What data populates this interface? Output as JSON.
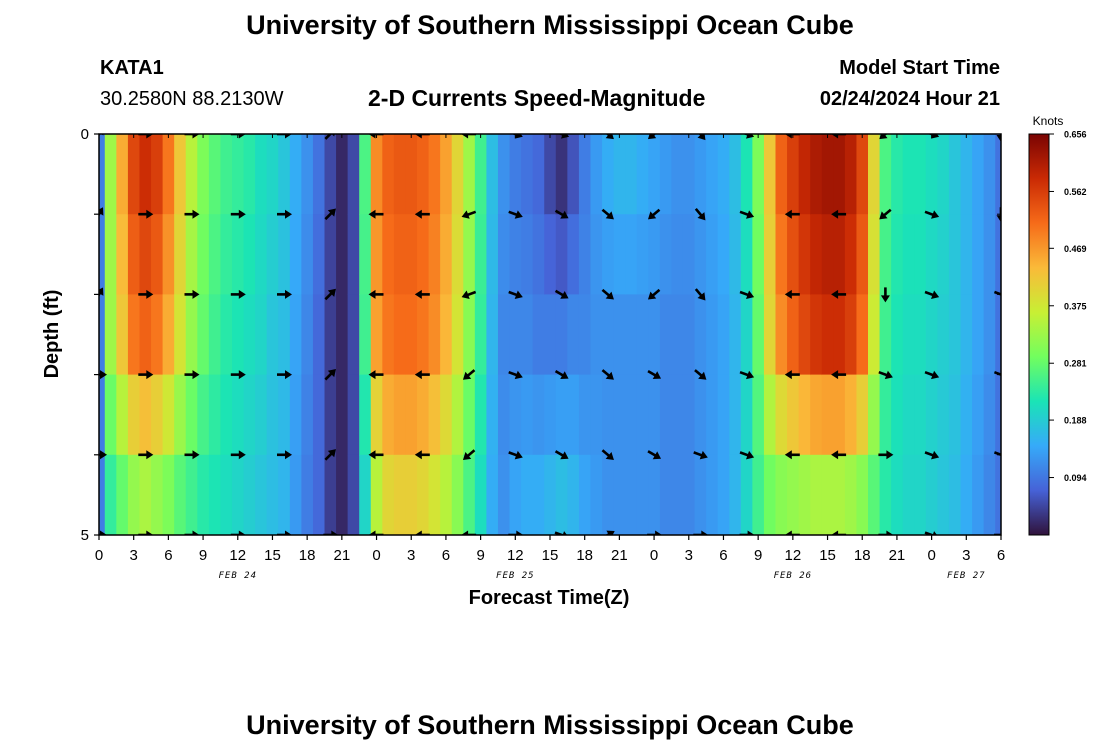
{
  "header": {
    "title": "University of Southern Mississippi Ocean Cube",
    "station": "KATA1",
    "coords": "30.2580N  88.2130W",
    "plot_title": "2-D Currents Speed-Magnitude",
    "model_start_label": "Model Start Time",
    "model_start_value": "02/24/2024 Hour 21"
  },
  "footer": {
    "title": "University of Southern Mississippi Ocean Cube"
  },
  "chart_data": {
    "type": "heatmap",
    "title": "2-D Currents Speed-Magnitude",
    "xlabel": "Forecast Time(Z)",
    "ylabel": "Depth (ft)",
    "ylim": [
      0,
      5
    ],
    "y_tick_labels": [
      "0",
      "5"
    ],
    "x_hours": [
      0,
      3,
      6,
      9,
      12,
      15,
      18,
      21,
      24,
      27,
      30,
      33,
      36,
      39,
      42,
      45,
      48,
      51,
      54,
      57,
      60,
      63,
      66,
      69,
      72,
      75,
      78
    ],
    "x_tick_labels": [
      "0",
      "3",
      "6",
      "9",
      "12",
      "15",
      "18",
      "21",
      "0",
      "3",
      "6",
      "9",
      "12",
      "15",
      "18",
      "21",
      "0",
      "3",
      "6",
      "9",
      "12",
      "15",
      "18",
      "21",
      "0",
      "3",
      "6"
    ],
    "date_labels": [
      {
        "label": "FEB 24",
        "hour": 12
      },
      {
        "label": "FEB 25",
        "hour": 36
      },
      {
        "label": "FEB 26",
        "hour": 60
      },
      {
        "label": "FEB 27",
        "hour": 75
      }
    ],
    "colorbar": {
      "unit": "Knots",
      "min": 0,
      "max": 0.656,
      "tick_labels": [
        "0.656",
        "0.562",
        "0.469",
        "0.375",
        "0.281",
        "0.188",
        "0.094"
      ],
      "colors": [
        "#30123b",
        "#4662d7",
        "#36aaf9",
        "#1ae4b6",
        "#72fe5e",
        "#c8ef34",
        "#faba39",
        "#f66b19",
        "#ca2a04",
        "#7a0403"
      ]
    },
    "speed_knots": [
      {
        "hour": 0,
        "surface": 0.1,
        "mid": 0.1,
        "bottom": 0.1
      },
      {
        "hour": 1,
        "surface": 0.33,
        "mid": 0.33,
        "bottom": 0.24
      },
      {
        "hour": 2,
        "surface": 0.45,
        "mid": 0.42,
        "bottom": 0.28
      },
      {
        "hour": 3,
        "surface": 0.55,
        "mid": 0.5,
        "bottom": 0.32
      },
      {
        "hour": 4,
        "surface": 0.58,
        "mid": 0.52,
        "bottom": 0.34
      },
      {
        "hour": 5,
        "surface": 0.56,
        "mid": 0.5,
        "bottom": 0.32
      },
      {
        "hour": 6,
        "surface": 0.5,
        "mid": 0.45,
        "bottom": 0.3
      },
      {
        "hour": 7,
        "surface": 0.42,
        "mid": 0.38,
        "bottom": 0.27
      },
      {
        "hour": 8,
        "surface": 0.35,
        "mid": 0.32,
        "bottom": 0.25
      },
      {
        "hour": 9,
        "surface": 0.3,
        "mid": 0.28,
        "bottom": 0.23
      },
      {
        "hour": 10,
        "surface": 0.27,
        "mid": 0.25,
        "bottom": 0.22
      },
      {
        "hour": 11,
        "surface": 0.25,
        "mid": 0.23,
        "bottom": 0.21
      },
      {
        "hour": 12,
        "surface": 0.24,
        "mid": 0.22,
        "bottom": 0.2
      },
      {
        "hour": 13,
        "surface": 0.23,
        "mid": 0.21,
        "bottom": 0.19
      },
      {
        "hour": 14,
        "surface": 0.21,
        "mid": 0.2,
        "bottom": 0.18
      },
      {
        "hour": 15,
        "surface": 0.2,
        "mid": 0.18,
        "bottom": 0.17
      },
      {
        "hour": 16,
        "surface": 0.18,
        "mid": 0.17,
        "bottom": 0.16
      },
      {
        "hour": 17,
        "surface": 0.15,
        "mid": 0.14,
        "bottom": 0.13
      },
      {
        "hour": 18,
        "surface": 0.12,
        "mid": 0.11,
        "bottom": 0.1
      },
      {
        "hour": 19,
        "surface": 0.09,
        "mid": 0.08,
        "bottom": 0.08
      },
      {
        "hour": 20,
        "surface": 0.05,
        "mid": 0.04,
        "bottom": 0.04
      },
      {
        "hour": 21,
        "surface": 0.02,
        "mid": 0.02,
        "bottom": 0.02
      },
      {
        "hour": 22,
        "surface": 0.05,
        "mid": 0.05,
        "bottom": 0.05
      },
      {
        "hour": 23,
        "surface": 0.26,
        "mid": 0.25,
        "bottom": 0.2
      },
      {
        "hour": 24,
        "surface": 0.48,
        "mid": 0.46,
        "bottom": 0.35
      },
      {
        "hour": 25,
        "surface": 0.52,
        "mid": 0.5,
        "bottom": 0.4
      },
      {
        "hour": 26,
        "surface": 0.53,
        "mid": 0.51,
        "bottom": 0.41
      },
      {
        "hour": 27,
        "surface": 0.53,
        "mid": 0.51,
        "bottom": 0.41
      },
      {
        "hour": 28,
        "surface": 0.52,
        "mid": 0.5,
        "bottom": 0.4
      },
      {
        "hour": 29,
        "surface": 0.5,
        "mid": 0.48,
        "bottom": 0.38
      },
      {
        "hour": 30,
        "surface": 0.46,
        "mid": 0.44,
        "bottom": 0.35
      },
      {
        "hour": 31,
        "surface": 0.4,
        "mid": 0.38,
        "bottom": 0.31
      },
      {
        "hour": 32,
        "surface": 0.33,
        "mid": 0.31,
        "bottom": 0.26
      },
      {
        "hour": 33,
        "surface": 0.25,
        "mid": 0.24,
        "bottom": 0.21
      },
      {
        "hour": 34,
        "surface": 0.17,
        "mid": 0.16,
        "bottom": 0.15
      },
      {
        "hour": 35,
        "surface": 0.12,
        "mid": 0.11,
        "bottom": 0.12
      },
      {
        "hour": 36,
        "surface": 0.1,
        "mid": 0.11,
        "bottom": 0.14
      },
      {
        "hour": 37,
        "surface": 0.09,
        "mid": 0.11,
        "bottom": 0.15
      },
      {
        "hour": 38,
        "surface": 0.08,
        "mid": 0.1,
        "bottom": 0.15
      },
      {
        "hour": 39,
        "surface": 0.05,
        "mid": 0.1,
        "bottom": 0.16
      },
      {
        "hour": 40,
        "surface": 0.03,
        "mid": 0.1,
        "bottom": 0.17
      },
      {
        "hour": 41,
        "surface": 0.06,
        "mid": 0.11,
        "bottom": 0.16
      },
      {
        "hour": 42,
        "surface": 0.1,
        "mid": 0.11,
        "bottom": 0.14
      },
      {
        "hour": 43,
        "surface": 0.13,
        "mid": 0.12,
        "bottom": 0.13
      },
      {
        "hour": 44,
        "surface": 0.15,
        "mid": 0.12,
        "bottom": 0.12
      },
      {
        "hour": 45,
        "surface": 0.16,
        "mid": 0.12,
        "bottom": 0.12
      },
      {
        "hour": 46,
        "surface": 0.16,
        "mid": 0.12,
        "bottom": 0.12
      },
      {
        "hour": 47,
        "surface": 0.15,
        "mid": 0.12,
        "bottom": 0.12
      },
      {
        "hour": 48,
        "surface": 0.14,
        "mid": 0.12,
        "bottom": 0.12
      },
      {
        "hour": 49,
        "surface": 0.13,
        "mid": 0.11,
        "bottom": 0.11
      },
      {
        "hour": 50,
        "surface": 0.12,
        "mid": 0.11,
        "bottom": 0.11
      },
      {
        "hour": 51,
        "surface": 0.12,
        "mid": 0.11,
        "bottom": 0.11
      },
      {
        "hour": 52,
        "surface": 0.13,
        "mid": 0.12,
        "bottom": 0.12
      },
      {
        "hour": 53,
        "surface": 0.14,
        "mid": 0.13,
        "bottom": 0.13
      },
      {
        "hour": 54,
        "surface": 0.15,
        "mid": 0.14,
        "bottom": 0.14
      },
      {
        "hour": 55,
        "surface": 0.17,
        "mid": 0.16,
        "bottom": 0.16
      },
      {
        "hour": 56,
        "surface": 0.22,
        "mid": 0.2,
        "bottom": 0.2
      },
      {
        "hour": 57,
        "surface": 0.3,
        "mid": 0.28,
        "bottom": 0.25
      },
      {
        "hour": 58,
        "surface": 0.42,
        "mid": 0.4,
        "bottom": 0.29
      },
      {
        "hour": 59,
        "surface": 0.52,
        "mid": 0.48,
        "bottom": 0.31
      },
      {
        "hour": 60,
        "surface": 0.56,
        "mid": 0.52,
        "bottom": 0.32
      },
      {
        "hour": 61,
        "surface": 0.59,
        "mid": 0.55,
        "bottom": 0.33
      },
      {
        "hour": 62,
        "surface": 0.61,
        "mid": 0.57,
        "bottom": 0.34
      },
      {
        "hour": 63,
        "surface": 0.62,
        "mid": 0.58,
        "bottom": 0.34
      },
      {
        "hour": 64,
        "surface": 0.62,
        "mid": 0.58,
        "bottom": 0.34
      },
      {
        "hour": 65,
        "surface": 0.6,
        "mid": 0.56,
        "bottom": 0.33
      },
      {
        "hour": 66,
        "surface": 0.55,
        "mid": 0.51,
        "bottom": 0.31
      },
      {
        "hour": 67,
        "surface": 0.4,
        "mid": 0.37,
        "bottom": 0.27
      },
      {
        "hour": 68,
        "surface": 0.26,
        "mid": 0.25,
        "bottom": 0.23
      },
      {
        "hour": 69,
        "surface": 0.23,
        "mid": 0.22,
        "bottom": 0.21
      },
      {
        "hour": 70,
        "surface": 0.22,
        "mid": 0.21,
        "bottom": 0.2
      },
      {
        "hour": 71,
        "surface": 0.22,
        "mid": 0.21,
        "bottom": 0.2
      },
      {
        "hour": 72,
        "surface": 0.21,
        "mid": 0.2,
        "bottom": 0.19
      },
      {
        "hour": 73,
        "surface": 0.2,
        "mid": 0.19,
        "bottom": 0.18
      },
      {
        "hour": 74,
        "surface": 0.18,
        "mid": 0.18,
        "bottom": 0.17
      },
      {
        "hour": 75,
        "surface": 0.16,
        "mid": 0.16,
        "bottom": 0.15
      },
      {
        "hour": 76,
        "surface": 0.14,
        "mid": 0.14,
        "bottom": 0.13
      },
      {
        "hour": 77,
        "surface": 0.12,
        "mid": 0.12,
        "bottom": 0.11
      },
      {
        "hour": 78,
        "surface": 0.09,
        "mid": 0.09,
        "bottom": 0.09
      }
    ],
    "arrow_depth_rows": [
      0,
      1,
      2,
      3,
      4,
      5
    ],
    "arrow_directions_deg": [
      {
        "hour": 0,
        "dirs": [
          -60,
          -60,
          -60,
          0,
          0,
          0
        ]
      },
      {
        "hour": 4,
        "dirs": [
          0,
          0,
          0,
          0,
          0,
          0
        ]
      },
      {
        "hour": 8,
        "dirs": [
          0,
          0,
          0,
          0,
          0,
          0
        ]
      },
      {
        "hour": 12,
        "dirs": [
          0,
          0,
          0,
          0,
          0,
          0
        ]
      },
      {
        "hour": 16,
        "dirs": [
          0,
          0,
          0,
          0,
          0,
          0
        ]
      },
      {
        "hour": 20,
        "dirs": [
          -45,
          -45,
          -45,
          -45,
          -45,
          0
        ]
      },
      {
        "hour": 24,
        "dirs": [
          180,
          180,
          180,
          180,
          180,
          180
        ]
      },
      {
        "hour": 28,
        "dirs": [
          180,
          180,
          180,
          180,
          180,
          180
        ]
      },
      {
        "hour": 32,
        "dirs": [
          180,
          160,
          160,
          140,
          140,
          180
        ]
      },
      {
        "hour": 36,
        "dirs": [
          20,
          20,
          20,
          20,
          20,
          0
        ]
      },
      {
        "hour": 40,
        "dirs": [
          20,
          30,
          30,
          30,
          30,
          20
        ]
      },
      {
        "hour": 44,
        "dirs": [
          40,
          40,
          40,
          40,
          40,
          -30
        ]
      },
      {
        "hour": 48,
        "dirs": [
          140,
          140,
          140,
          30,
          30,
          0
        ]
      },
      {
        "hour": 52,
        "dirs": [
          50,
          50,
          50,
          40,
          20,
          0
        ]
      },
      {
        "hour": 56,
        "dirs": [
          20,
          20,
          20,
          20,
          20,
          0
        ]
      },
      {
        "hour": 60,
        "dirs": [
          180,
          180,
          180,
          180,
          180,
          180
        ]
      },
      {
        "hour": 64,
        "dirs": [
          180,
          180,
          180,
          180,
          180,
          180
        ]
      },
      {
        "hour": 68,
        "dirs": [
          140,
          140,
          90,
          20,
          0,
          0
        ]
      },
      {
        "hour": 72,
        "dirs": [
          20,
          20,
          20,
          20,
          20,
          20
        ]
      },
      {
        "hour": 78,
        "dirs": [
          90,
          90,
          20,
          20,
          20,
          0
        ]
      }
    ]
  }
}
